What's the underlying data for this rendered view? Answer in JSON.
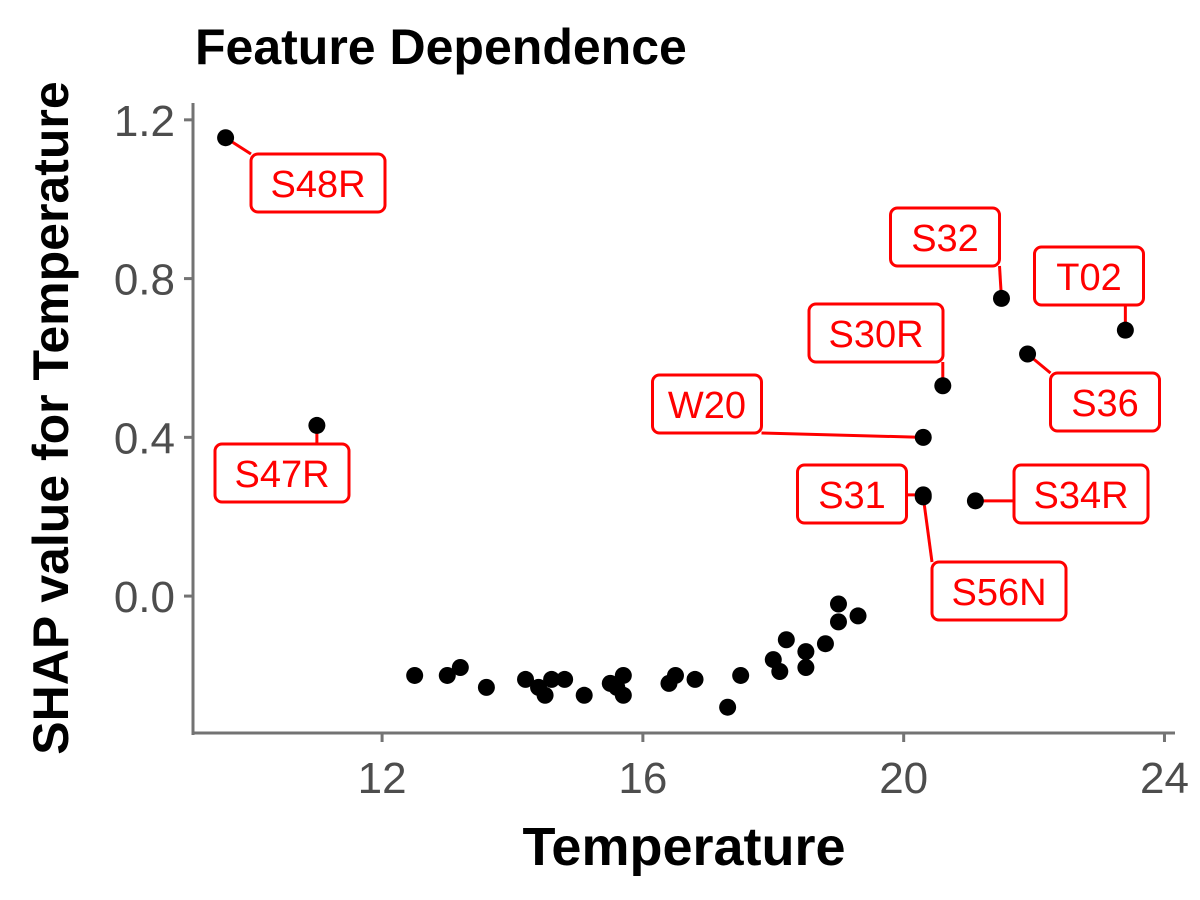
{
  "chart_data": {
    "type": "scatter",
    "title": "Feature Dependence",
    "xlabel": "Temperature",
    "ylabel": "SHAP value for Temperature",
    "xlim": [
      9.1,
      24.1
    ],
    "ylim": [
      -0.345,
      1.25
    ],
    "xticks": [
      12,
      16,
      20,
      24
    ],
    "yticks": [
      0.0,
      0.4,
      0.8,
      1.2
    ],
    "xtick_labels": [
      "12",
      "16",
      "20",
      "24"
    ],
    "ytick_labels": [
      "0.0",
      "0.4",
      "0.8",
      "1.2"
    ],
    "grid": false,
    "legend": "none",
    "point_color": "#000000",
    "label_color": "#ff0000",
    "points": [
      {
        "x": 9.6,
        "y": 1.155,
        "label": "S48R"
      },
      {
        "x": 11.0,
        "y": 0.43,
        "label": "S47R"
      },
      {
        "x": 20.3,
        "y": 0.4,
        "label": "W20"
      },
      {
        "x": 20.6,
        "y": 0.53,
        "label": "S30R"
      },
      {
        "x": 21.5,
        "y": 0.75,
        "label": "S32"
      },
      {
        "x": 23.4,
        "y": 0.67,
        "label": "T02"
      },
      {
        "x": 21.9,
        "y": 0.61,
        "label": "S36"
      },
      {
        "x": 20.3,
        "y": 0.255,
        "label": "S31"
      },
      {
        "x": 20.3,
        "y": 0.25,
        "label": "S56N"
      },
      {
        "x": 21.1,
        "y": 0.24,
        "label": "S34R"
      },
      {
        "x": 12.5,
        "y": -0.2
      },
      {
        "x": 13.0,
        "y": -0.2
      },
      {
        "x": 13.2,
        "y": -0.18
      },
      {
        "x": 13.6,
        "y": -0.23
      },
      {
        "x": 14.2,
        "y": -0.21
      },
      {
        "x": 14.4,
        "y": -0.23
      },
      {
        "x": 14.5,
        "y": -0.25
      },
      {
        "x": 14.6,
        "y": -0.21
      },
      {
        "x": 14.8,
        "y": -0.21
      },
      {
        "x": 15.1,
        "y": -0.25
      },
      {
        "x": 15.5,
        "y": -0.22
      },
      {
        "x": 15.6,
        "y": -0.23
      },
      {
        "x": 15.7,
        "y": -0.2
      },
      {
        "x": 15.7,
        "y": -0.25
      },
      {
        "x": 16.4,
        "y": -0.22
      },
      {
        "x": 16.5,
        "y": -0.2
      },
      {
        "x": 16.8,
        "y": -0.21
      },
      {
        "x": 17.3,
        "y": -0.28
      },
      {
        "x": 17.5,
        "y": -0.2
      },
      {
        "x": 18.0,
        "y": -0.16
      },
      {
        "x": 18.1,
        "y": -0.19
      },
      {
        "x": 18.2,
        "y": -0.11
      },
      {
        "x": 18.5,
        "y": -0.14
      },
      {
        "x": 18.5,
        "y": -0.18
      },
      {
        "x": 18.8,
        "y": -0.12
      },
      {
        "x": 19.0,
        "y": -0.02
      },
      {
        "x": 19.0,
        "y": -0.065
      },
      {
        "x": 19.3,
        "y": -0.05
      }
    ]
  }
}
